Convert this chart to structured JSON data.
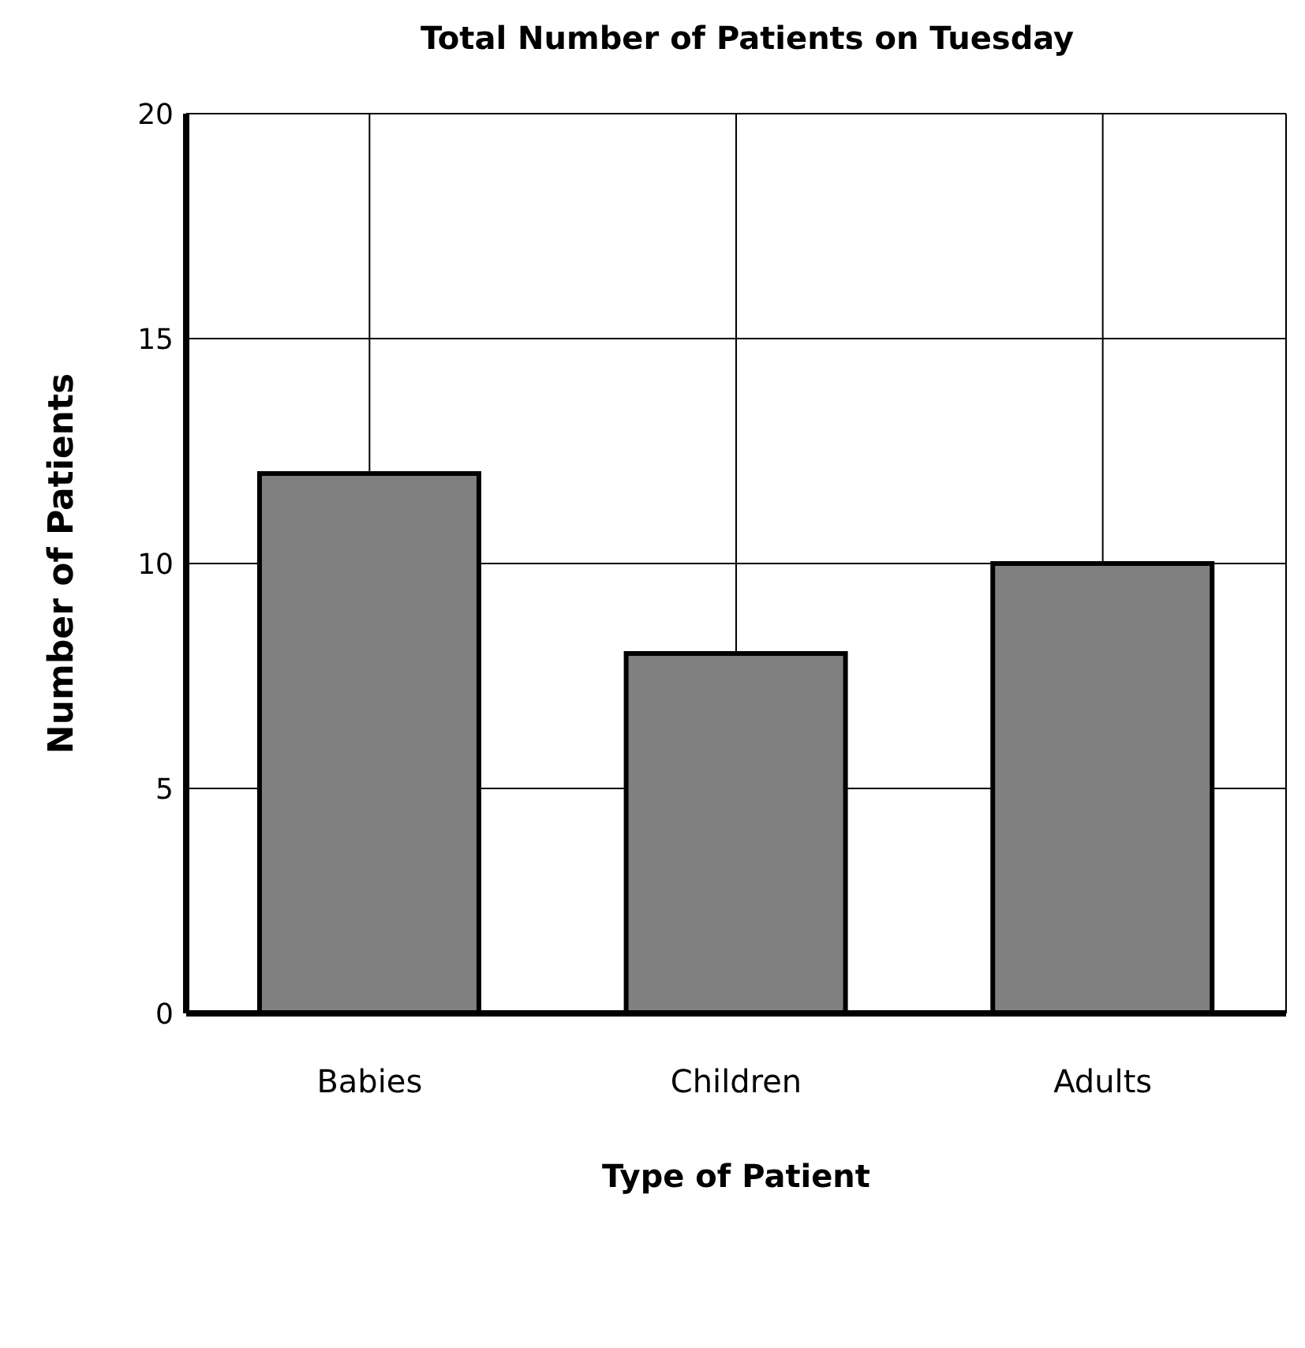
{
  "chart_data": {
    "type": "bar",
    "title": "Total Number of Patients on Tuesday",
    "xlabel": "Type of Patient",
    "ylabel": "Number of Patients",
    "categories": [
      "Babies",
      "Children",
      "Adults"
    ],
    "values": [
      12,
      8,
      10
    ],
    "color": "#808080",
    "ylim": [
      0,
      20
    ],
    "yticks": [
      0,
      5,
      10,
      15,
      20
    ],
    "grid": true
  }
}
